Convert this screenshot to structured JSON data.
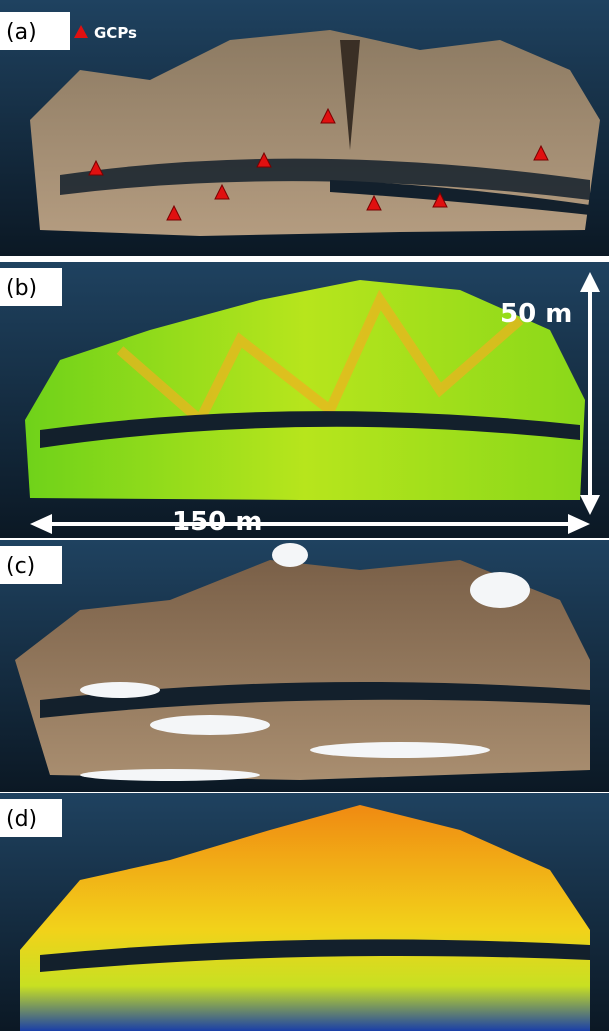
{
  "panels": [
    {
      "label": "(a)"
    },
    {
      "label": "(b)"
    },
    {
      "label": "(c)"
    },
    {
      "label": "(d)"
    }
  ],
  "legend": {
    "label": "GCPs"
  },
  "scale": {
    "vertical": "50 m",
    "horizontal": "150 m"
  }
}
